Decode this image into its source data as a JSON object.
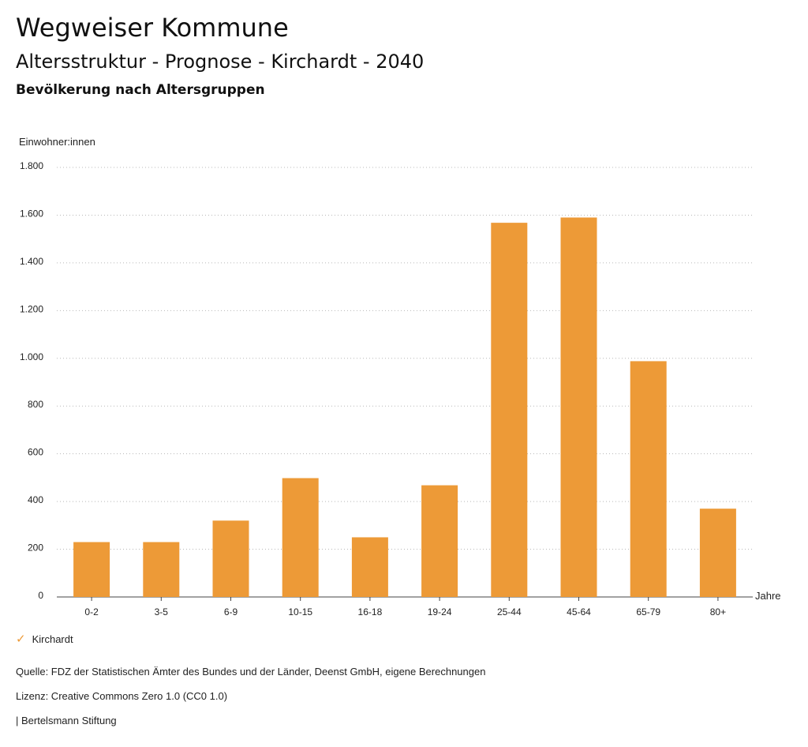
{
  "header": {
    "title": "Wegweiser Kommune",
    "subtitle": "Altersstruktur - Prognose - Kirchardt - 2040",
    "section": "Bevölkerung nach Altersgruppen"
  },
  "chart_data": {
    "type": "bar",
    "ylabel": "Einwohner:innen",
    "xlabel": "Jahre",
    "ylim": [
      0,
      1800
    ],
    "yticks": [
      0,
      200,
      400,
      600,
      800,
      1000,
      1200,
      1400,
      1600,
      1800
    ],
    "ytick_labels": [
      "0",
      "200",
      "400",
      "600",
      "800",
      "1.000",
      "1.200",
      "1.400",
      "1.600",
      "1.800"
    ],
    "grid": true,
    "categories": [
      "0-2",
      "3-5",
      "6-9",
      "10-15",
      "16-18",
      "19-24",
      "25-44",
      "45-64",
      "65-79",
      "80+"
    ],
    "series": [
      {
        "name": "Kirchardt",
        "color": "#ED9A37",
        "values": [
          230,
          230,
          320,
          498,
          250,
          468,
          1568,
          1590,
          988,
          370
        ]
      }
    ],
    "legend_position": "bottom-left"
  },
  "legend": {
    "label": "Kirchardt",
    "icon": "check-icon"
  },
  "footer": {
    "source": "Quelle: FDZ der Statistischen Ämter des Bundes und der Länder, Deenst GmbH, eigene Berechnungen",
    "license": "Lizenz: Creative Commons Zero 1.0 (CC0 1.0)",
    "publisher": "| Bertelsmann Stiftung"
  }
}
